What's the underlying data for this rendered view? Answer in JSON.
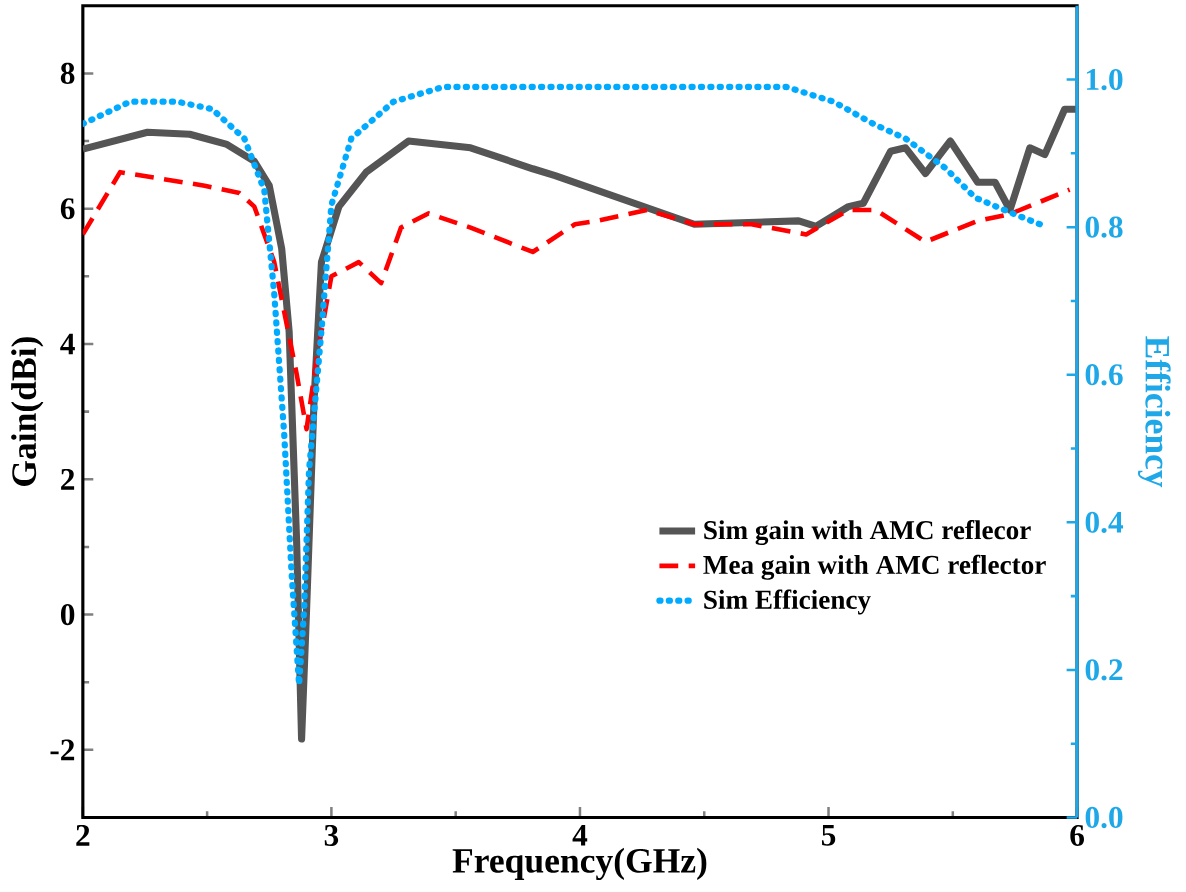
{
  "chart_data": {
    "type": "line",
    "xlabel": "Frequency(GHz)",
    "ylabel": "Gain(dBi)",
    "y2label": "Efficiency",
    "xlim": [
      2,
      6
    ],
    "xticks": [
      2,
      3,
      4,
      5,
      6
    ],
    "ylim": [
      -3,
      9
    ],
    "yticks": [
      -2,
      0,
      2,
      4,
      6,
      8
    ],
    "y2lim": [
      0,
      1.1
    ],
    "y2ticks": [
      {
        "value": 0,
        "label": "0.0"
      },
      0.2,
      0.4,
      0.6,
      0.8,
      {
        "value": 1,
        "label": "1.0"
      }
    ],
    "legend": "right",
    "grid": false,
    "series": [
      {
        "name": "Sim gain with AMC reflecor",
        "color": "#555555",
        "line_style": "solid",
        "axis": "y",
        "x": [
          2.0,
          2.26,
          2.43,
          2.58,
          2.69,
          2.75,
          2.8,
          2.83,
          2.86,
          2.88,
          2.9,
          2.93,
          2.96,
          3.03,
          3.14,
          3.31,
          3.56,
          3.81,
          3.9,
          4.46,
          4.88,
          4.95,
          5.08,
          5.14,
          5.25,
          5.31,
          5.39,
          5.49,
          5.6,
          5.67,
          5.73,
          5.81,
          5.87,
          5.95,
          6.0
        ],
        "values": [
          6.88,
          7.13,
          7.1,
          6.95,
          6.7,
          6.34,
          5.41,
          4.18,
          1.09,
          -1.84,
          0.06,
          3.15,
          5.21,
          6.03,
          6.54,
          7.0,
          6.9,
          6.59,
          6.49,
          5.77,
          5.82,
          5.74,
          6.03,
          6.08,
          6.85,
          6.9,
          6.52,
          7.0,
          6.39,
          6.39,
          5.98,
          6.9,
          6.8,
          7.47,
          7.47
        ]
      },
      {
        "name": "Mea gain with AMC reflector",
        "color": "#ff0000",
        "line_style": "dashed",
        "axis": "y",
        "x": [
          2.0,
          2.15,
          2.49,
          2.63,
          2.69,
          2.77,
          2.86,
          2.9,
          2.94,
          3.0,
          3.11,
          3.2,
          3.28,
          3.39,
          3.56,
          3.81,
          3.98,
          4.07,
          4.27,
          4.46,
          4.69,
          4.91,
          5.08,
          5.19,
          5.39,
          5.6,
          5.73,
          5.97
        ],
        "values": [
          5.62,
          6.54,
          6.34,
          6.23,
          6.03,
          5.21,
          3.56,
          2.74,
          3.77,
          5.0,
          5.21,
          4.9,
          5.72,
          5.93,
          5.72,
          5.36,
          5.77,
          5.82,
          5.98,
          5.77,
          5.77,
          5.62,
          5.98,
          5.98,
          5.51,
          5.82,
          5.92,
          6.28
        ]
      },
      {
        "name": "Sim Efficiency",
        "color": "#00aaff",
        "line_style": "dotted",
        "axis": "y2",
        "x": [
          2.0,
          2.19,
          2.38,
          2.52,
          2.65,
          2.73,
          2.77,
          2.81,
          2.84,
          2.87,
          2.89,
          2.91,
          2.96,
          3.0,
          3.08,
          3.25,
          3.45,
          3.79,
          3.93,
          4.49,
          4.83,
          5.02,
          5.18,
          5.31,
          5.47,
          5.59,
          5.73,
          5.88
        ],
        "values": [
          0.94,
          0.97,
          0.97,
          0.96,
          0.92,
          0.85,
          0.71,
          0.52,
          0.33,
          0.18,
          0.28,
          0.47,
          0.66,
          0.83,
          0.92,
          0.97,
          0.99,
          0.99,
          0.99,
          0.99,
          0.99,
          0.97,
          0.94,
          0.92,
          0.88,
          0.84,
          0.82,
          0.8
        ]
      }
    ]
  }
}
